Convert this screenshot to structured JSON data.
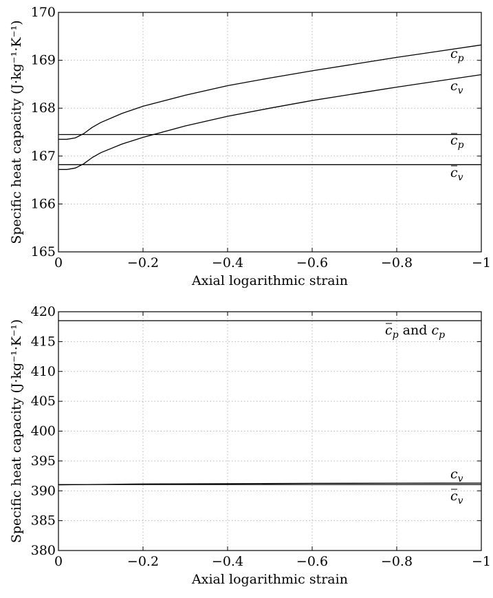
{
  "chart_data": [
    {
      "type": "line",
      "xlabel": "Axial logarithmic strain",
      "ylabel": "Specific heat capacity (J·kg⁻¹·K⁻¹)",
      "xlim": [
        0,
        -1
      ],
      "ylim": [
        165,
        170
      ],
      "xticks": [
        0,
        -0.2,
        -0.4,
        -0.6,
        -0.8,
        -1
      ],
      "xtick_labels": [
        "0",
        "−0.2",
        "−0.4",
        "−0.6",
        "−0.8",
        "−1"
      ],
      "yticks": [
        165,
        166,
        167,
        168,
        169,
        170
      ],
      "ytick_labels": [
        "165",
        "166",
        "167",
        "168",
        "169",
        "170"
      ],
      "grid": true,
      "series": [
        {
          "name": "c_p",
          "label_html": "c<sub>p</sub>",
          "label_main": "c",
          "label_sub": "p",
          "label_bar": false,
          "x": [
            0,
            -0.02,
            -0.04,
            -0.06,
            -0.08,
            -0.1,
            -0.15,
            -0.2,
            -0.3,
            -0.4,
            -0.5,
            -0.6,
            -0.7,
            -0.8,
            -0.9,
            -1.0
          ],
          "y": [
            167.35,
            167.35,
            167.38,
            167.47,
            167.6,
            167.7,
            167.89,
            168.04,
            168.27,
            168.47,
            168.63,
            168.78,
            168.92,
            169.06,
            169.19,
            169.32
          ]
        },
        {
          "name": "c_v",
          "label_html": "c<sub>v</sub>",
          "label_main": "c",
          "label_sub": "v",
          "label_bar": false,
          "x": [
            0,
            -0.02,
            -0.04,
            -0.06,
            -0.08,
            -0.1,
            -0.15,
            -0.2,
            -0.3,
            -0.4,
            -0.5,
            -0.6,
            -0.7,
            -0.8,
            -0.9,
            -1.0
          ],
          "y": [
            166.72,
            166.72,
            166.75,
            166.84,
            166.97,
            167.07,
            167.25,
            167.39,
            167.63,
            167.83,
            168.0,
            168.16,
            168.3,
            168.44,
            168.57,
            168.7
          ]
        },
        {
          "name": "c̄_p",
          "label_main": "c",
          "label_sub": "p",
          "label_bar": true,
          "x": [
            0,
            -1
          ],
          "y": [
            167.45,
            167.45
          ]
        },
        {
          "name": "c̄_v",
          "label_main": "c",
          "label_sub": "v",
          "label_bar": true,
          "x": [
            0,
            -1
          ],
          "y": [
            166.82,
            166.82
          ]
        }
      ]
    },
    {
      "type": "line",
      "xlabel": "Axial logarithmic strain",
      "ylabel": "Specific heat capacity (J·kg⁻¹·K⁻¹)",
      "xlim": [
        0,
        -1
      ],
      "ylim": [
        380,
        420
      ],
      "xticks": [
        0,
        -0.2,
        -0.4,
        -0.6,
        -0.8,
        -1
      ],
      "xtick_labels": [
        "0",
        "−0.2",
        "−0.4",
        "−0.6",
        "−0.8",
        "−1"
      ],
      "yticks": [
        380,
        385,
        390,
        395,
        400,
        405,
        410,
        415,
        420
      ],
      "ytick_labels": [
        "380",
        "385",
        "390",
        "395",
        "400",
        "405",
        "410",
        "415",
        "420"
      ],
      "grid": true,
      "series": [
        {
          "name": "c̄_p and c_p",
          "label_main": "c",
          "label_sub": "p",
          "label_bar": true,
          "label_suffix": " and ",
          "label_main2": "c",
          "label_sub2": "p",
          "x": [
            0,
            -1
          ],
          "y": [
            418.5,
            418.5
          ]
        },
        {
          "name": "c_v",
          "label_main": "c",
          "label_sub": "v",
          "label_bar": false,
          "x": [
            0,
            -0.2,
            -0.4,
            -0.6,
            -0.8,
            -1.0
          ],
          "y": [
            391.0,
            391.15,
            391.2,
            391.25,
            391.28,
            391.3
          ]
        },
        {
          "name": "c̄_v",
          "label_main": "c",
          "label_sub": "v",
          "label_bar": true,
          "x": [
            0,
            -1
          ],
          "y": [
            391.05,
            391.05
          ]
        }
      ]
    }
  ]
}
